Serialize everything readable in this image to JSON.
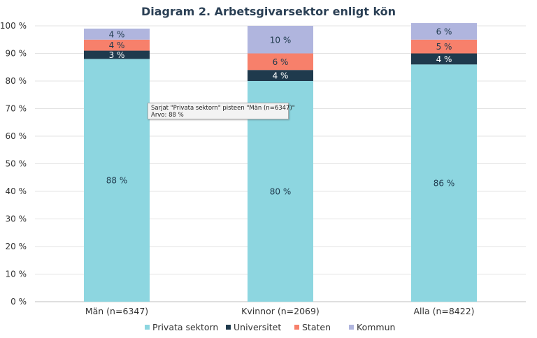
{
  "chart_data": {
    "type": "bar",
    "stacked": true,
    "title": "Diagram 2. Arbetsgivarsektor enligt kön",
    "categories": [
      "Män (n=6347)",
      "Kvinnor (n=2069)",
      "Alla (n=8422)"
    ],
    "series": [
      {
        "name": "Privata sektorn",
        "color": "#8dd6e0",
        "values": [
          88,
          80,
          86
        ],
        "labels": [
          "88 %",
          "80 %",
          "86 %"
        ],
        "label_color": "#1f3a4d"
      },
      {
        "name": "Universitet",
        "color": "#1f3a4d",
        "values": [
          3,
          4,
          4
        ],
        "labels": [
          "3 %",
          "4 %",
          "4 %"
        ],
        "label_color": "#ffffff"
      },
      {
        "name": "Staten",
        "color": "#f7806b",
        "values": [
          4,
          6,
          5
        ],
        "labels": [
          "4 %",
          "6 %",
          "5 %"
        ],
        "label_color": "#1f3a4d"
      },
      {
        "name": "Kommun",
        "color": "#b0b5de",
        "values": [
          4,
          10,
          6
        ],
        "labels": [
          "4 %",
          "10 %",
          "6 %"
        ],
        "label_color": "#1f3a4d"
      }
    ],
    "ylim": [
      0,
      100
    ],
    "yticks": [
      0,
      10,
      20,
      30,
      40,
      50,
      60,
      70,
      80,
      90,
      100
    ],
    "ytick_labels": [
      "0 %",
      "10 %",
      "20 %",
      "30 %",
      "40 %",
      "50 %",
      "60 %",
      "70 %",
      "80 %",
      "90 %",
      "100 %"
    ],
    "grid": true,
    "legend": "bottom"
  },
  "tooltip": {
    "line1": "Sarjat \"Privata sektorn\" pisteen \"Män (n=6347)\"",
    "line2": "Arvo: 88 %"
  }
}
